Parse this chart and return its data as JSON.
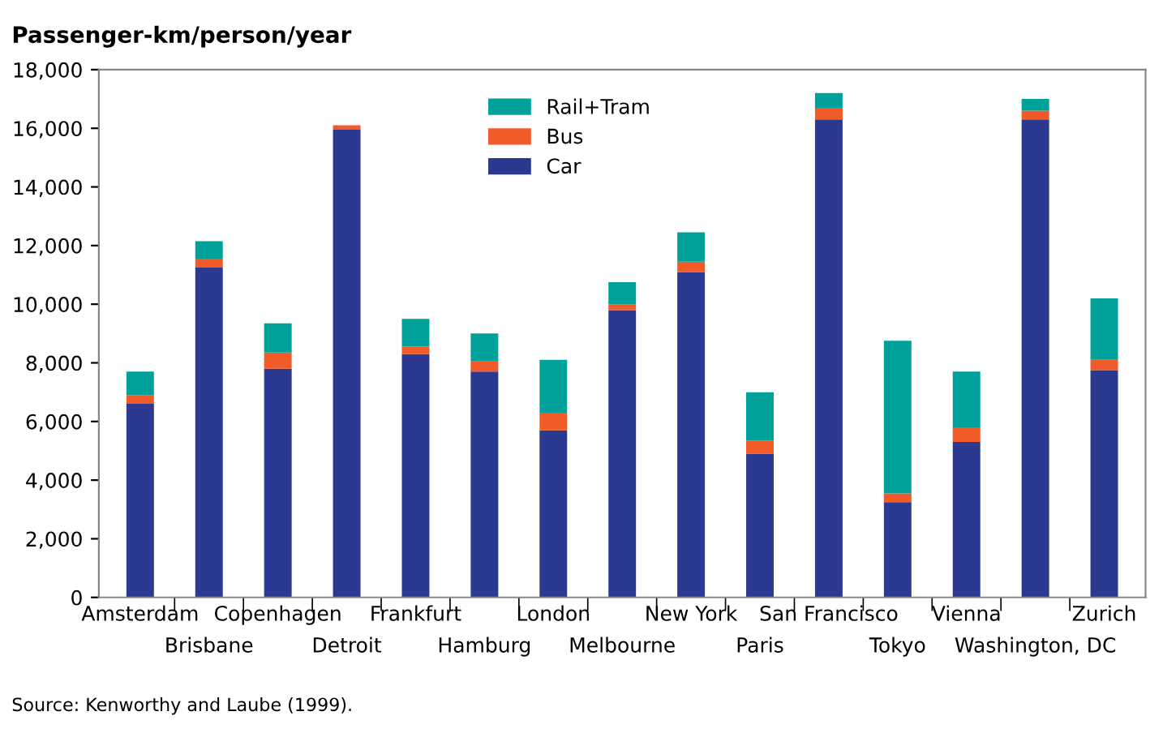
{
  "chart_data": {
    "type": "bar",
    "stacked": true,
    "ylabel": "Passenger-km/person/year",
    "categories": [
      "Amsterdam",
      "Brisbane",
      "Copenhagen",
      "Detroit",
      "Frankfurt",
      "Hamburg",
      "London",
      "Melbourne",
      "New York",
      "Paris",
      "San Francisco",
      "Tokyo",
      "Vienna",
      "Washington, DC",
      "Zurich"
    ],
    "series": [
      {
        "name": "Car",
        "color": "#2b3990",
        "values": [
          6600,
          11250,
          7800,
          15950,
          8300,
          7700,
          5700,
          9800,
          11100,
          4900,
          16300,
          3250,
          5300,
          16300,
          7750
        ]
      },
      {
        "name": "Bus",
        "color": "#f15a29",
        "values": [
          300,
          300,
          550,
          150,
          250,
          350,
          600,
          200,
          350,
          450,
          400,
          300,
          500,
          300,
          350
        ]
      },
      {
        "name": "Rail+Tram",
        "color": "#00a19a",
        "values": [
          800,
          600,
          1000,
          0,
          950,
          950,
          1800,
          750,
          1000,
          1650,
          500,
          5200,
          1900,
          400,
          2100
        ]
      }
    ],
    "ylim": [
      0,
      18000
    ],
    "yticks": [
      0,
      {
        "value": 2000,
        "label": "2,000"
      },
      {
        "value": 4000,
        "label": "4,000"
      },
      {
        "value": 6000,
        "label": "6,000"
      },
      {
        "value": 8000,
        "label": "8,000"
      },
      {
        "value": 10000,
        "label": "10,000"
      },
      {
        "value": 12000,
        "label": "12,000"
      },
      {
        "value": 14000,
        "label": "14,000"
      },
      {
        "value": 16000,
        "label": "16,000"
      },
      {
        "value": 18000,
        "label": "18,000"
      }
    ],
    "grid": false,
    "legend": "top",
    "annotations": [
      "Source: Kenworthy and Laube (1999)."
    ]
  }
}
